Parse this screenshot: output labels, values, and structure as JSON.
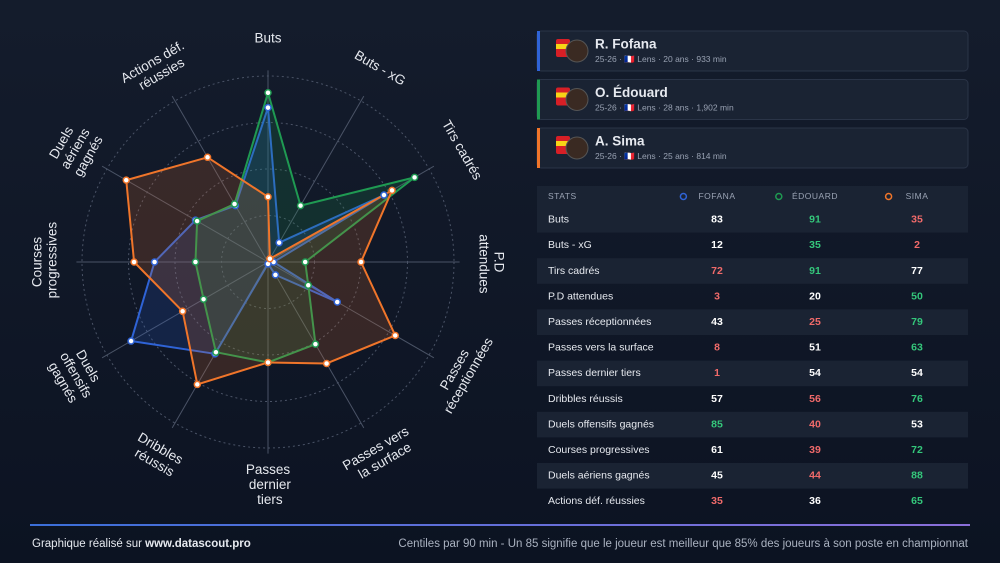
{
  "chart_data": {
    "type": "radar",
    "axes": [
      "Buts",
      "Buts - xG",
      "Tirs cadrés",
      "P.D attendues",
      "Passes réceptionnées",
      "Passes vers la surface",
      "Passes dernier tiers",
      "Dribbles réussis",
      "Duels offensifs gagnés",
      "Courses progressives",
      "Duels aériens gagnés",
      "Actions déf. réussies"
    ],
    "series": [
      {
        "name": "R. Fofana",
        "color": "#2f63d6",
        "values": [
          83,
          12,
          72,
          3,
          43,
          8,
          1,
          57,
          85,
          61,
          45,
          35
        ]
      },
      {
        "name": "O. Édouard",
        "color": "#1f9a52",
        "values": [
          91,
          35,
          91,
          20,
          25,
          51,
          54,
          56,
          40,
          39,
          44,
          36
        ]
      },
      {
        "name": "A. Sima",
        "color": "#f0752a",
        "values": [
          35,
          2,
          77,
          50,
          79,
          63,
          54,
          76,
          53,
          72,
          88,
          65
        ]
      }
    ],
    "rlim": [
      0,
      100
    ],
    "rticks": [
      25,
      50,
      75,
      100
    ]
  },
  "players": [
    {
      "season": "25-26",
      "club": "Lens",
      "age": "20 ans",
      "minutes": "933 min"
    },
    {
      "season": "25-26",
      "club": "Lens",
      "age": "28 ans",
      "minutes": "1,902 min"
    },
    {
      "season": "25-26",
      "club": "Lens",
      "age": "25 ans",
      "minutes": "814 min"
    }
  ],
  "table": {
    "header": [
      "STATS",
      "FOFANA",
      "ÉDOUARD",
      "SIMA"
    ]
  },
  "footer": {
    "left": "Graphique réalisé sur",
    "link": "www.datascout.pro",
    "right": "Centiles par 90 min - Un 85 signifie que le joueur est meilleur que 85% des joueurs à son poste en championnat"
  }
}
